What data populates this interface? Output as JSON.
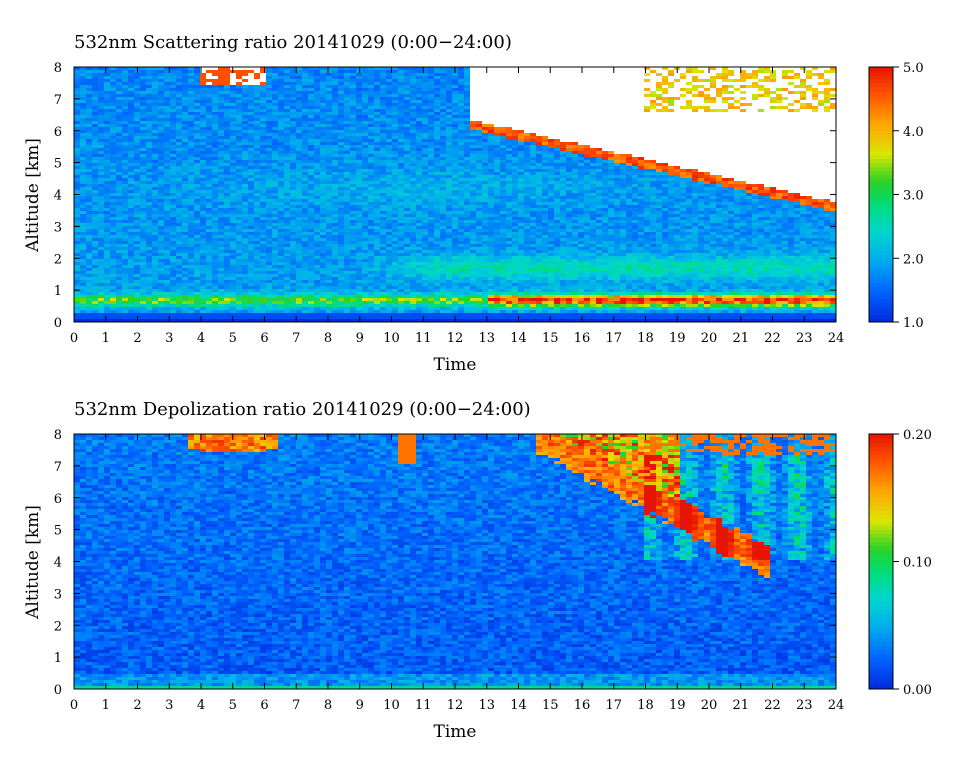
{
  "chart_data": [
    {
      "type": "heatmap",
      "title": "532nm Scattering ratio  20141029 (0:00−24:00)",
      "xlabel": "Time",
      "ylabel": "Altitude [km]",
      "xlim": [
        0,
        24
      ],
      "ylim": [
        0,
        8
      ],
      "x_ticks": [
        "0",
        "1",
        "2",
        "3",
        "4",
        "5",
        "6",
        "7",
        "8",
        "9",
        "10",
        "11",
        "12",
        "13",
        "14",
        "15",
        "16",
        "17",
        "18",
        "19",
        "20",
        "21",
        "22",
        "23",
        "24"
      ],
      "y_ticks": [
        "0",
        "1",
        "2",
        "3",
        "4",
        "5",
        "6",
        "7",
        "8"
      ],
      "colorbar": {
        "range": [
          1.0,
          5.0
        ],
        "ticks": [
          "1.0",
          "2.0",
          "3.0",
          "4.0",
          "5.0"
        ]
      },
      "features": {
        "background_value": 1.9,
        "surface_layer": {
          "altitude_range_km": [
            0.4,
            0.9
          ],
          "value_early": 3.3,
          "value_late": 4.9,
          "max_from_hour": 13
        },
        "elevated_layer": {
          "altitude_range_km": [
            1.2,
            2.1
          ],
          "value": 2.6,
          "hours": [
            9,
            24
          ]
        },
        "no_data_region": {
          "start": [
            12.5,
            6.2
          ],
          "end": [
            24,
            3.6
          ],
          "upper_limit_km": 8
        },
        "early_cloud_patch": {
          "hours": [
            4,
            6
          ],
          "altitude_range_km": [
            7.4,
            8
          ]
        }
      }
    },
    {
      "type": "heatmap",
      "title": "532nm Depolization ratio  20141029 (0:00−24:00)",
      "xlabel": "Time",
      "ylabel": "Altitude [km]",
      "xlim": [
        0,
        24
      ],
      "ylim": [
        0,
        8
      ],
      "x_ticks": [
        "0",
        "1",
        "2",
        "3",
        "4",
        "5",
        "6",
        "7",
        "8",
        "9",
        "10",
        "11",
        "12",
        "13",
        "14",
        "15",
        "16",
        "17",
        "18",
        "19",
        "20",
        "21",
        "22",
        "23",
        "24"
      ],
      "y_ticks": [
        "0",
        "1",
        "2",
        "3",
        "4",
        "5",
        "6",
        "7",
        "8"
      ],
      "colorbar": {
        "range": [
          0.0,
          0.2
        ],
        "ticks": [
          "0.00",
          "0.10",
          "0.20"
        ]
      },
      "features": {
        "background_value": 0.02,
        "cloud_patch_early": {
          "hours": [
            3.6,
            6.5
          ],
          "altitude_range_km": [
            7.4,
            8
          ],
          "value": 0.19
        },
        "cloud_band": {
          "start": [
            14.5,
            8
          ],
          "end": [
            22,
            3.9
          ],
          "value": 0.19
        },
        "streaks_region": {
          "hours": [
            18,
            24
          ],
          "altitude_range_km": [
            4,
            8
          ],
          "value": 0.08
        }
      }
    }
  ]
}
